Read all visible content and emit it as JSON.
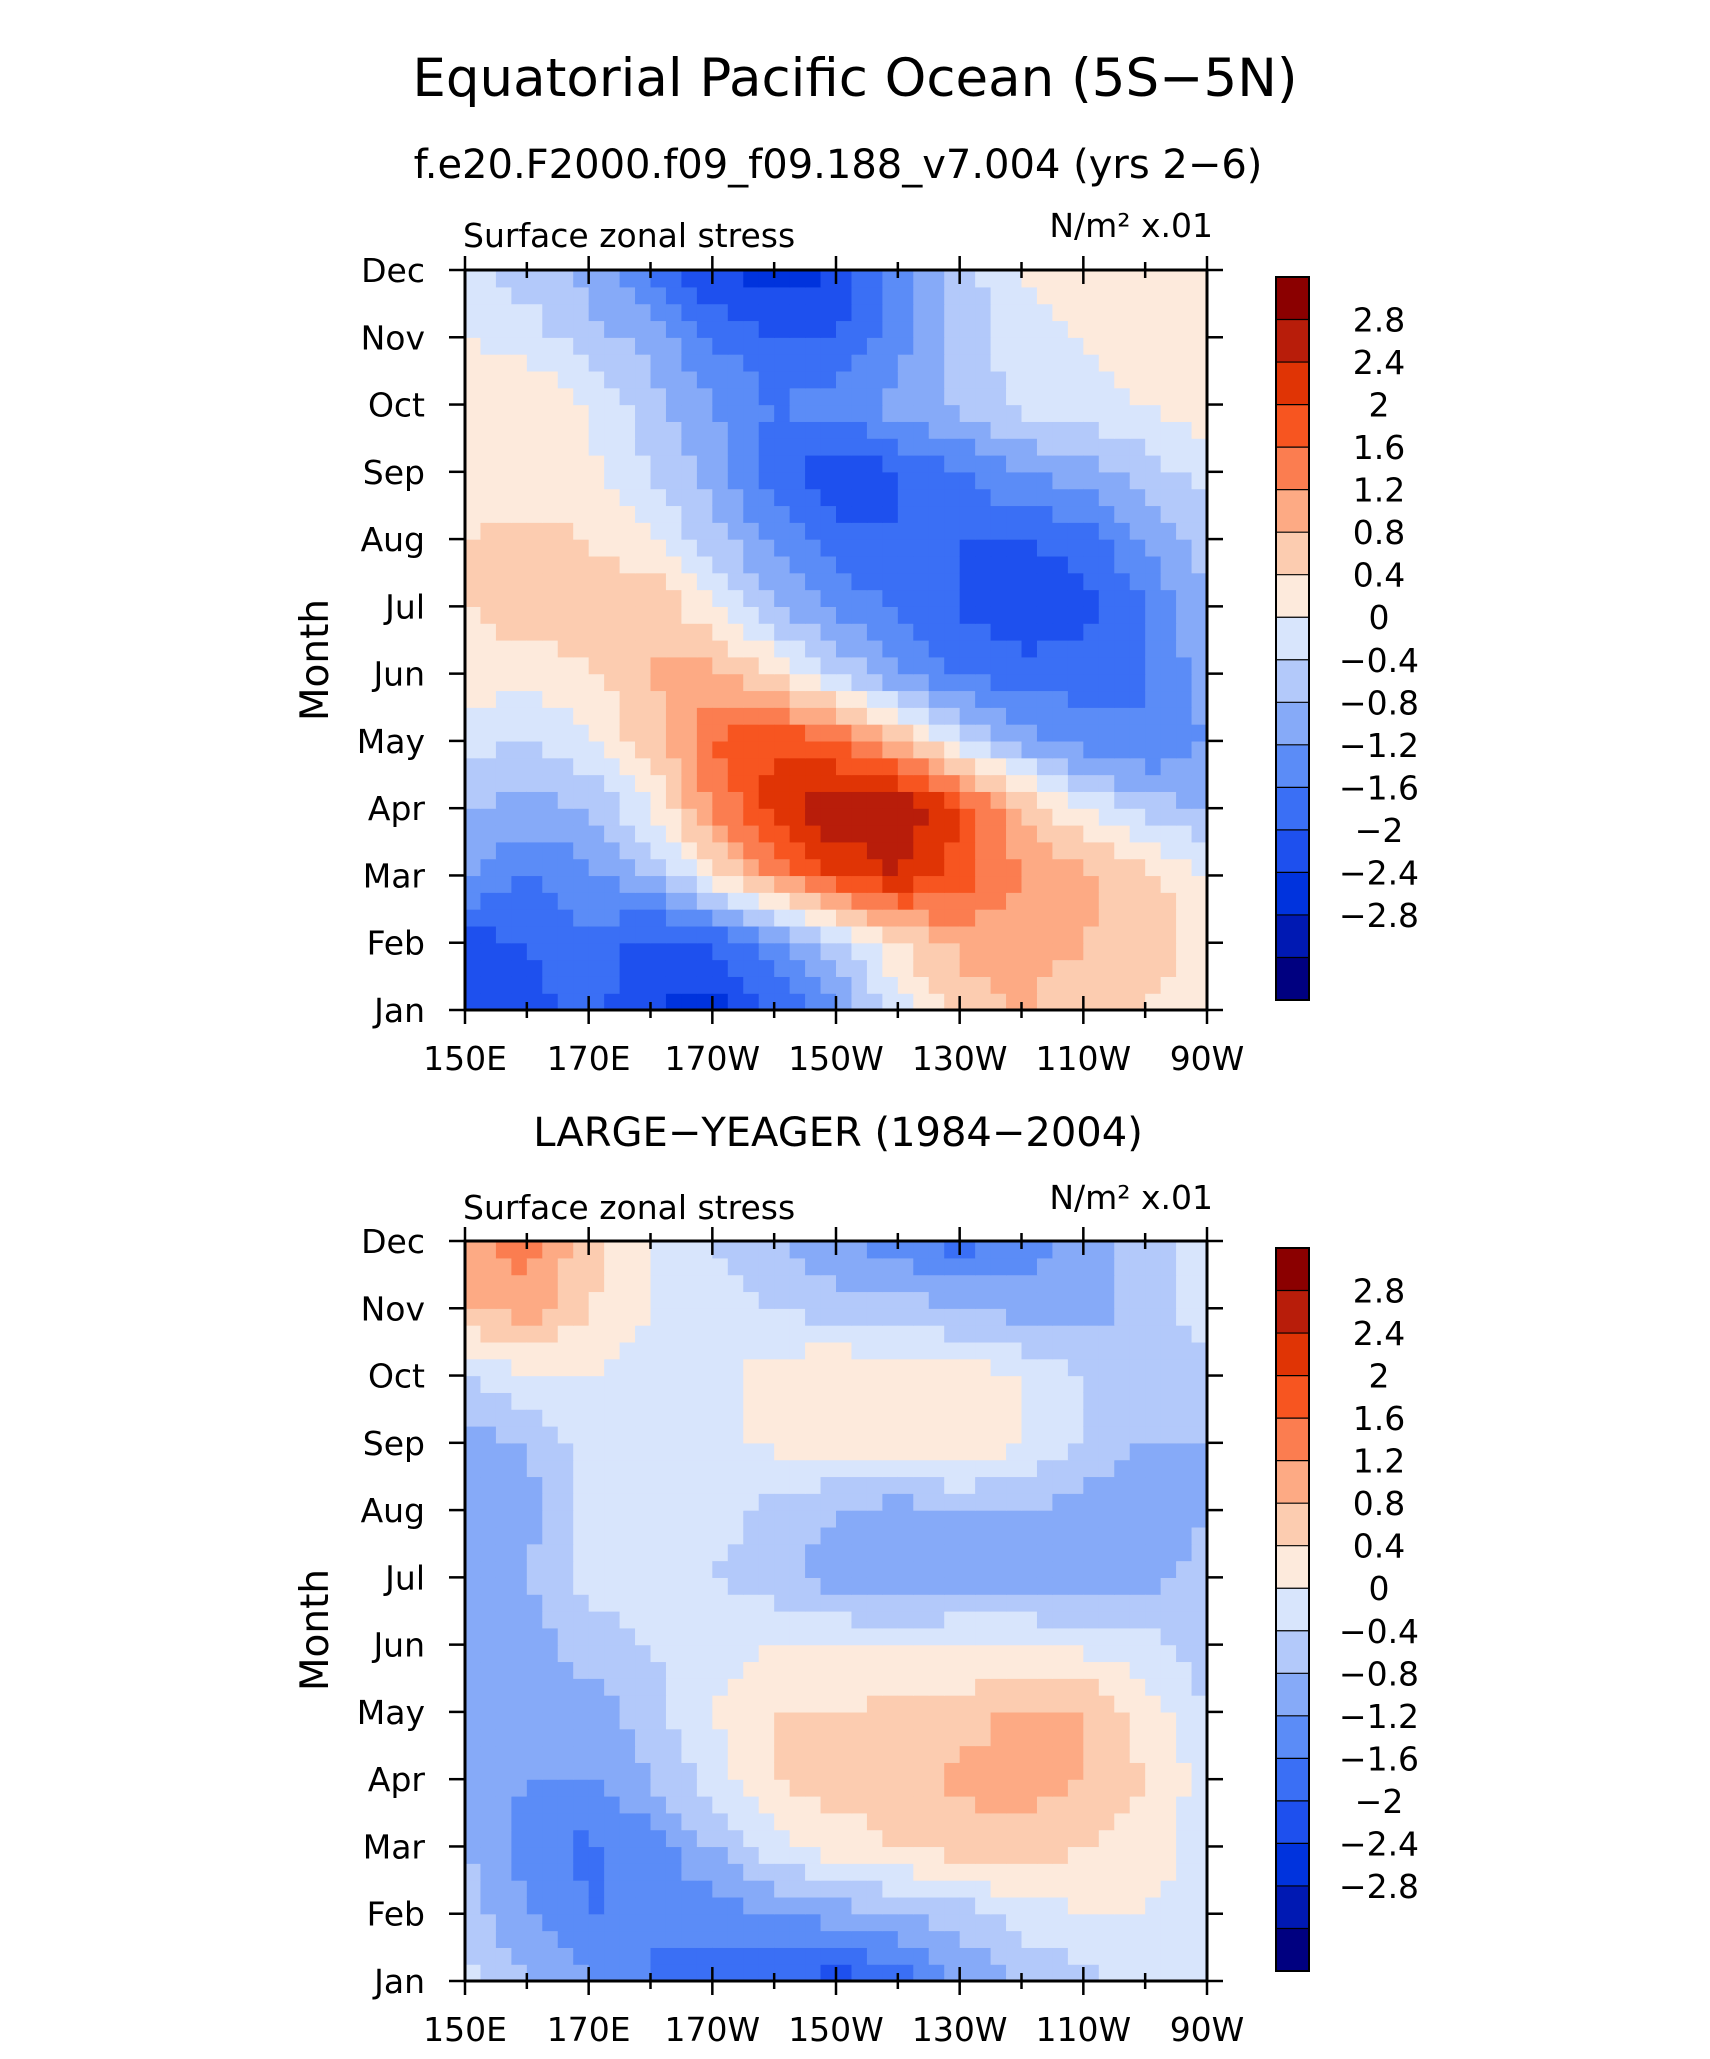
{
  "figure": {
    "title": "Equatorial Pacific Ocean (5S−5N)"
  },
  "colors": {
    "levels": [
      "#000080",
      "#0019b3",
      "#0033dd",
      "#1e50ee",
      "#3a6ff5",
      "#5b8cf7",
      "#86aaf8",
      "#b3c9fa",
      "#d8e5fc",
      "#fdeadc",
      "#fcccb0",
      "#fdaa84",
      "#fb7d50",
      "#f75520",
      "#e03405",
      "#b81d0a",
      "#8b0000"
    ]
  },
  "chart_data": [
    {
      "type": "heatmap",
      "title": "f.e20.F2000.f09_f09.188_v7.004 (yrs 2−6)",
      "left_label": "Surface zonal stress",
      "right_label": "N/m² x.01",
      "ylabel": "Month",
      "x_ticks": [
        "150E",
        "170E",
        "170W",
        "150W",
        "130W",
        "110W",
        "90W"
      ],
      "y_ticks": [
        "Jan",
        "Feb",
        "Mar",
        "Apr",
        "May",
        "Jun",
        "Jul",
        "Aug",
        "Sep",
        "Oct",
        "Nov",
        "Dec"
      ],
      "colorbar_labels": [
        "2.8",
        "2.4",
        "2",
        "1.6",
        "1.2",
        "0.8",
        "0.4",
        "0",
        "−0.4",
        "−0.8",
        "−1.2",
        "−1.6",
        "−2",
        "−2.4",
        "−2.8"
      ],
      "xlim": [
        150,
        270
      ],
      "ylim": [
        1,
        12
      ],
      "grid": [
        {
          "month": "Jan",
          "values": [
            -1.6,
            -1.8,
            -1.4,
            -2.0,
            -2.2,
            -1.6,
            -0.8,
            0.2,
            1.0,
            1.2,
            1.0,
            0.8,
            0.6
          ]
        },
        {
          "month": "Feb",
          "values": [
            -1.8,
            -1.6,
            -1.3,
            -1.8,
            -1.6,
            -1.0,
            -0.2,
            0.8,
            1.3,
            1.4,
            1.2,
            1.0,
            0.6
          ]
        },
        {
          "month": "Mar",
          "values": [
            -0.8,
            -1.2,
            -0.9,
            -0.4,
            0.6,
            1.6,
            2.4,
            2.8,
            2.2,
            1.6,
            1.3,
            1.0,
            0.4
          ]
        },
        {
          "month": "Apr",
          "values": [
            -0.3,
            -0.6,
            -0.4,
            0.4,
            1.6,
            2.6,
            3.2,
            3.2,
            2.4,
            1.2,
            0.4,
            -0.2,
            -0.4
          ]
        },
        {
          "month": "May",
          "values": [
            0.2,
            -0.1,
            0.4,
            1.0,
            2.0,
            2.4,
            2.0,
            1.2,
            0.2,
            -0.6,
            -1.0,
            -1.2,
            -0.8
          ]
        },
        {
          "month": "Jun",
          "values": [
            0.6,
            0.6,
            0.7,
            1.2,
            1.4,
            0.8,
            0.0,
            -0.8,
            -1.3,
            -1.4,
            -1.4,
            -1.2,
            -0.6
          ]
        },
        {
          "month": "Jul",
          "values": [
            0.8,
            1.0,
            1.1,
            1.2,
            0.4,
            -0.4,
            -0.9,
            -1.3,
            -1.6,
            -2.0,
            -1.8,
            -1.2,
            -0.4
          ]
        },
        {
          "month": "Aug",
          "values": [
            0.8,
            0.9,
            0.8,
            0.4,
            -0.2,
            -0.9,
            -1.4,
            -1.6,
            -1.6,
            -1.6,
            -1.4,
            -0.8,
            -0.2
          ]
        },
        {
          "month": "Sep",
          "values": [
            0.6,
            0.6,
            0.5,
            0.0,
            -0.6,
            -1.4,
            -2.0,
            -1.6,
            -1.2,
            -0.8,
            -0.6,
            -0.2,
            0.2
          ]
        },
        {
          "month": "Oct",
          "values": [
            0.6,
            0.8,
            0.4,
            -0.2,
            -0.8,
            -1.2,
            -1.0,
            -0.6,
            -0.3,
            0.1,
            0.3,
            0.4,
            0.6
          ]
        },
        {
          "month": "Nov",
          "values": [
            0.4,
            0.2,
            -0.2,
            -0.6,
            -1.2,
            -1.6,
            -1.6,
            -1.0,
            -0.2,
            0.2,
            0.4,
            0.6,
            0.6
          ]
        },
        {
          "month": "Dec",
          "values": [
            0.2,
            -0.2,
            -0.6,
            -1.2,
            -2.0,
            -2.2,
            -2.0,
            -1.0,
            -0.2,
            0.4,
            0.8,
            0.8,
            0.6
          ]
        }
      ]
    },
    {
      "type": "heatmap",
      "title": "LARGE−YEAGER (1984−2004)",
      "left_label": "Surface zonal stress",
      "right_label": "N/m² x.01",
      "ylabel": "Month",
      "x_ticks": [
        "150E",
        "170E",
        "170W",
        "150W",
        "130W",
        "110W",
        "90W"
      ],
      "y_ticks": [
        "Jan",
        "Feb",
        "Mar",
        "Apr",
        "May",
        "Jun",
        "Jul",
        "Aug",
        "Sep",
        "Oct",
        "Nov",
        "Dec"
      ],
      "colorbar_labels": [
        "2.8",
        "2.4",
        "2",
        "1.6",
        "1.2",
        "0.8",
        "0.4",
        "0",
        "−0.4",
        "−0.8",
        "−1.2",
        "−1.6",
        "−2",
        "−2.4",
        "−2.8"
      ],
      "xlim": [
        150,
        270
      ],
      "ylim": [
        1,
        12
      ],
      "grid": [
        {
          "month": "Jan",
          "values": [
            0.2,
            -0.4,
            -0.8,
            -1.2,
            -1.4,
            -1.6,
            -1.8,
            -1.4,
            -0.8,
            -0.4,
            -0.2,
            0.2,
            0.2
          ]
        },
        {
          "month": "Feb",
          "values": [
            -0.2,
            -0.8,
            -1.2,
            -1.2,
            -1.0,
            -0.8,
            -0.6,
            -0.4,
            -0.2,
            0.2,
            0.4,
            0.4,
            0.2
          ]
        },
        {
          "month": "Mar",
          "values": [
            -0.4,
            -1.0,
            -1.3,
            -1.0,
            -0.4,
            0.2,
            0.6,
            0.8,
            1.0,
            1.0,
            0.8,
            0.6,
            0.2
          ]
        },
        {
          "month": "Apr",
          "values": [
            -0.4,
            -0.8,
            -0.8,
            -0.4,
            0.2,
            0.8,
            1.0,
            1.0,
            1.3,
            1.4,
            1.2,
            0.8,
            0.2
          ]
        },
        {
          "month": "May",
          "values": [
            -0.4,
            -0.8,
            -0.6,
            -0.2,
            0.4,
            0.8,
            0.8,
            0.9,
            1.0,
            1.3,
            1.2,
            0.6,
            0.0
          ]
        },
        {
          "month": "Jun",
          "values": [
            -0.6,
            -0.6,
            -0.2,
            0.0,
            0.2,
            0.4,
            0.4,
            0.4,
            0.4,
            0.4,
            0.3,
            0.2,
            -0.2
          ]
        },
        {
          "month": "Jul",
          "values": [
            -0.6,
            -0.4,
            0.2,
            0.2,
            0.0,
            -0.2,
            -0.6,
            -0.8,
            -0.6,
            -0.6,
            -0.8,
            -0.6,
            -0.2
          ]
        },
        {
          "month": "Aug",
          "values": [
            -0.8,
            -0.6,
            0.2,
            0.3,
            0.2,
            -0.2,
            -0.4,
            -0.6,
            -0.4,
            -0.4,
            -0.6,
            -0.8,
            -0.4
          ]
        },
        {
          "month": "Sep",
          "values": [
            -0.6,
            -0.4,
            0.2,
            0.3,
            0.3,
            0.5,
            0.6,
            0.6,
            0.8,
            0.4,
            0.0,
            -0.4,
            -0.4
          ]
        },
        {
          "month": "Oct",
          "values": [
            0.0,
            0.4,
            0.4,
            0.2,
            0.2,
            0.6,
            0.8,
            0.6,
            0.6,
            0.4,
            0.0,
            -0.2,
            -0.2
          ]
        },
        {
          "month": "Nov",
          "values": [
            1.2,
            1.4,
            0.8,
            0.4,
            0.2,
            0.0,
            -0.2,
            -0.2,
            -0.4,
            -0.6,
            -0.6,
            -0.2,
            0.2
          ]
        },
        {
          "month": "Dec",
          "values": [
            1.4,
            1.8,
            1.0,
            0.4,
            0.0,
            -0.4,
            -0.8,
            -1.0,
            -1.4,
            -1.0,
            -0.6,
            -0.2,
            0.2
          ]
        }
      ]
    }
  ]
}
